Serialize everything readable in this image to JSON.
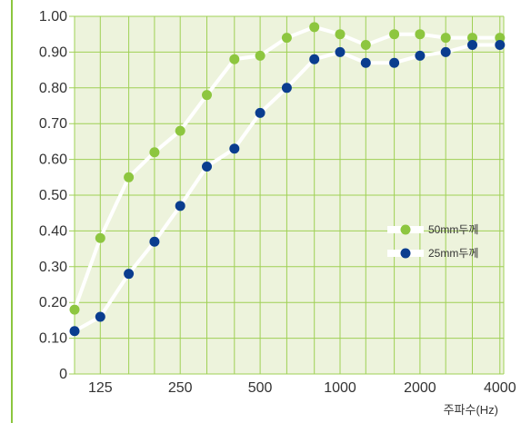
{
  "colors": {
    "plot_background": "#edf3dc",
    "grid": "#9fd055",
    "accent_rule": "#8cc63f",
    "line": "#ffffff",
    "series_a": "#8dc63f",
    "series_b": "#0a3d8f"
  },
  "chart_data": {
    "type": "line",
    "title": "",
    "xlabel": "주파수(Hz)",
    "ylabel": "",
    "x": [
      100,
      125,
      160,
      200,
      250,
      315,
      400,
      500,
      630,
      800,
      1000,
      1250,
      1600,
      2000,
      2500,
      3150,
      4000
    ],
    "x_tick_labels": [
      "125",
      "250",
      "500",
      "1000",
      "2000",
      "4000"
    ],
    "x_tick_values": [
      125,
      250,
      500,
      1000,
      2000,
      4000
    ],
    "y_tick_labels": [
      "0",
      "0.10",
      "0.20",
      "0.30",
      "0.40",
      "0.50",
      "0.60",
      "0.70",
      "0.80",
      "0.90",
      "1.00"
    ],
    "ylim": [
      0,
      1.0
    ],
    "grid": true,
    "legend_position": "right",
    "series": [
      {
        "name": "50mm두께",
        "color": "#8dc63f",
        "values": [
          0.18,
          0.38,
          0.55,
          0.62,
          0.68,
          0.78,
          0.88,
          0.89,
          0.94,
          0.97,
          0.95,
          0.92,
          0.95,
          0.95,
          0.94,
          0.94,
          0.94
        ]
      },
      {
        "name": "25mm두께",
        "color": "#0a3d8f",
        "values": [
          0.12,
          0.16,
          0.28,
          0.37,
          0.47,
          0.58,
          0.63,
          0.73,
          0.8,
          0.88,
          0.9,
          0.87,
          0.87,
          0.89,
          0.9,
          0.92,
          0.92
        ]
      }
    ]
  }
}
